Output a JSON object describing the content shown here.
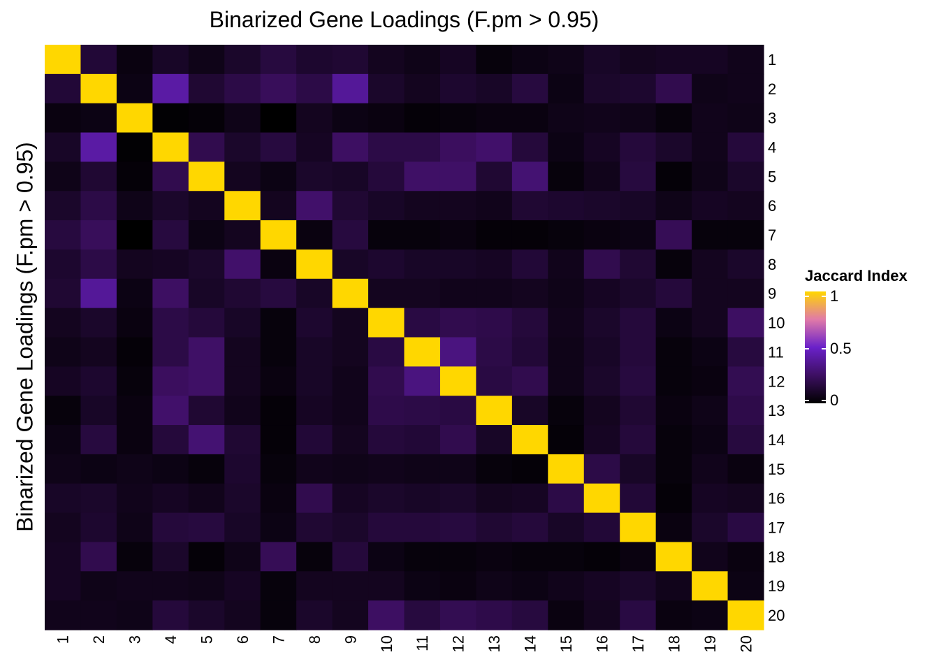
{
  "chart_data": {
    "type": "heatmap",
    "title": "Binarized Gene Loadings (F.pm > 0.95)",
    "xlabel": "",
    "ylabel": "Binarized Gene Loadings (F.pm > 0.95)",
    "x_categories": [
      "1",
      "2",
      "3",
      "4",
      "5",
      "6",
      "7",
      "8",
      "9",
      "10",
      "11",
      "12",
      "13",
      "14",
      "15",
      "16",
      "17",
      "18",
      "19",
      "20"
    ],
    "y_categories": [
      "1",
      "2",
      "3",
      "4",
      "5",
      "6",
      "7",
      "8",
      "9",
      "10",
      "11",
      "12",
      "13",
      "14",
      "15",
      "16",
      "17",
      "18",
      "19",
      "20"
    ],
    "values": [
      [
        1,
        0.14,
        0.04,
        0.1,
        0.06,
        0.11,
        0.16,
        0.12,
        0.13,
        0.08,
        0.06,
        0.09,
        0.03,
        0.05,
        0.06,
        0.1,
        0.08,
        0.09,
        0.09,
        0.07
      ],
      [
        0.14,
        1,
        0.05,
        0.41,
        0.13,
        0.18,
        0.23,
        0.18,
        0.38,
        0.11,
        0.08,
        0.12,
        0.1,
        0.16,
        0.05,
        0.11,
        0.12,
        0.2,
        0.06,
        0.07
      ],
      [
        0.04,
        0.05,
        1,
        0.01,
        0.02,
        0.06,
        0.0,
        0.08,
        0.05,
        0.04,
        0.02,
        0.03,
        0.04,
        0.04,
        0.06,
        0.07,
        0.06,
        0.03,
        0.07,
        0.06
      ],
      [
        0.1,
        0.41,
        0.01,
        1,
        0.2,
        0.11,
        0.16,
        0.09,
        0.25,
        0.18,
        0.18,
        0.24,
        0.27,
        0.15,
        0.05,
        0.09,
        0.15,
        0.11,
        0.07,
        0.15
      ],
      [
        0.06,
        0.13,
        0.02,
        0.2,
        1,
        0.08,
        0.05,
        0.11,
        0.1,
        0.15,
        0.26,
        0.26,
        0.13,
        0.29,
        0.03,
        0.07,
        0.16,
        0.02,
        0.06,
        0.11
      ],
      [
        0.11,
        0.18,
        0.06,
        0.11,
        0.08,
        1,
        0.08,
        0.27,
        0.13,
        0.1,
        0.08,
        0.08,
        0.07,
        0.13,
        0.12,
        0.11,
        0.1,
        0.06,
        0.09,
        0.08
      ],
      [
        0.16,
        0.23,
        0.0,
        0.16,
        0.05,
        0.08,
        1,
        0.04,
        0.16,
        0.03,
        0.03,
        0.04,
        0.02,
        0.02,
        0.03,
        0.04,
        0.05,
        0.22,
        0.03,
        0.03
      ],
      [
        0.12,
        0.18,
        0.08,
        0.09,
        0.11,
        0.27,
        0.04,
        1,
        0.1,
        0.12,
        0.1,
        0.1,
        0.09,
        0.14,
        0.07,
        0.2,
        0.13,
        0.03,
        0.08,
        0.11
      ],
      [
        0.13,
        0.38,
        0.05,
        0.25,
        0.1,
        0.13,
        0.16,
        0.1,
        1,
        0.08,
        0.08,
        0.07,
        0.07,
        0.08,
        0.06,
        0.09,
        0.11,
        0.15,
        0.08,
        0.08
      ],
      [
        0.08,
        0.11,
        0.04,
        0.18,
        0.15,
        0.1,
        0.03,
        0.12,
        0.08,
        1,
        0.17,
        0.2,
        0.19,
        0.15,
        0.07,
        0.11,
        0.15,
        0.05,
        0.08,
        0.25
      ],
      [
        0.06,
        0.08,
        0.02,
        0.18,
        0.26,
        0.08,
        0.03,
        0.1,
        0.08,
        0.17,
        1,
        0.32,
        0.18,
        0.14,
        0.06,
        0.1,
        0.15,
        0.03,
        0.05,
        0.16
      ],
      [
        0.09,
        0.12,
        0.03,
        0.24,
        0.26,
        0.08,
        0.04,
        0.1,
        0.07,
        0.2,
        0.32,
        1,
        0.17,
        0.2,
        0.06,
        0.11,
        0.16,
        0.03,
        0.04,
        0.21
      ],
      [
        0.03,
        0.1,
        0.04,
        0.27,
        0.13,
        0.07,
        0.02,
        0.09,
        0.07,
        0.19,
        0.18,
        0.17,
        1,
        0.1,
        0.03,
        0.08,
        0.13,
        0.04,
        0.06,
        0.19
      ],
      [
        0.05,
        0.16,
        0.04,
        0.15,
        0.29,
        0.13,
        0.02,
        0.14,
        0.08,
        0.15,
        0.14,
        0.2,
        0.1,
        1,
        0.02,
        0.09,
        0.15,
        0.03,
        0.05,
        0.16
      ],
      [
        0.06,
        0.05,
        0.06,
        0.05,
        0.03,
        0.12,
        0.03,
        0.07,
        0.06,
        0.07,
        0.06,
        0.06,
        0.03,
        0.02,
        1,
        0.18,
        0.1,
        0.03,
        0.07,
        0.04
      ],
      [
        0.1,
        0.11,
        0.07,
        0.09,
        0.07,
        0.11,
        0.04,
        0.2,
        0.09,
        0.11,
        0.1,
        0.11,
        0.08,
        0.09,
        0.18,
        1,
        0.14,
        0.02,
        0.09,
        0.08
      ],
      [
        0.08,
        0.12,
        0.06,
        0.15,
        0.16,
        0.1,
        0.05,
        0.13,
        0.11,
        0.15,
        0.15,
        0.16,
        0.13,
        0.15,
        0.1,
        0.14,
        1,
        0.04,
        0.11,
        0.17
      ],
      [
        0.09,
        0.2,
        0.03,
        0.11,
        0.02,
        0.06,
        0.22,
        0.03,
        0.15,
        0.05,
        0.03,
        0.03,
        0.04,
        0.03,
        0.03,
        0.02,
        0.04,
        1,
        0.07,
        0.04
      ],
      [
        0.09,
        0.06,
        0.07,
        0.07,
        0.06,
        0.09,
        0.03,
        0.08,
        0.08,
        0.08,
        0.05,
        0.04,
        0.06,
        0.05,
        0.07,
        0.09,
        0.11,
        0.07,
        1,
        0.05
      ],
      [
        0.07,
        0.07,
        0.06,
        0.15,
        0.11,
        0.08,
        0.03,
        0.11,
        0.08,
        0.25,
        0.16,
        0.21,
        0.19,
        0.16,
        0.04,
        0.08,
        0.17,
        0.04,
        0.05,
        1
      ]
    ],
    "color_scale": {
      "name": "Jaccard Index",
      "min": 0,
      "max": 1,
      "stops": [
        {
          "value": 0,
          "color": "#000000"
        },
        {
          "value": 0.25,
          "color": "#3d0f62"
        },
        {
          "value": 0.5,
          "color": "#6a21c9"
        },
        {
          "value": 0.75,
          "color": "#e07aa8"
        },
        {
          "value": 1,
          "color": "#ffd700"
        }
      ]
    },
    "legend_ticks": [
      "0",
      "0.5",
      "1"
    ],
    "legend_position": "right",
    "grid": false
  }
}
